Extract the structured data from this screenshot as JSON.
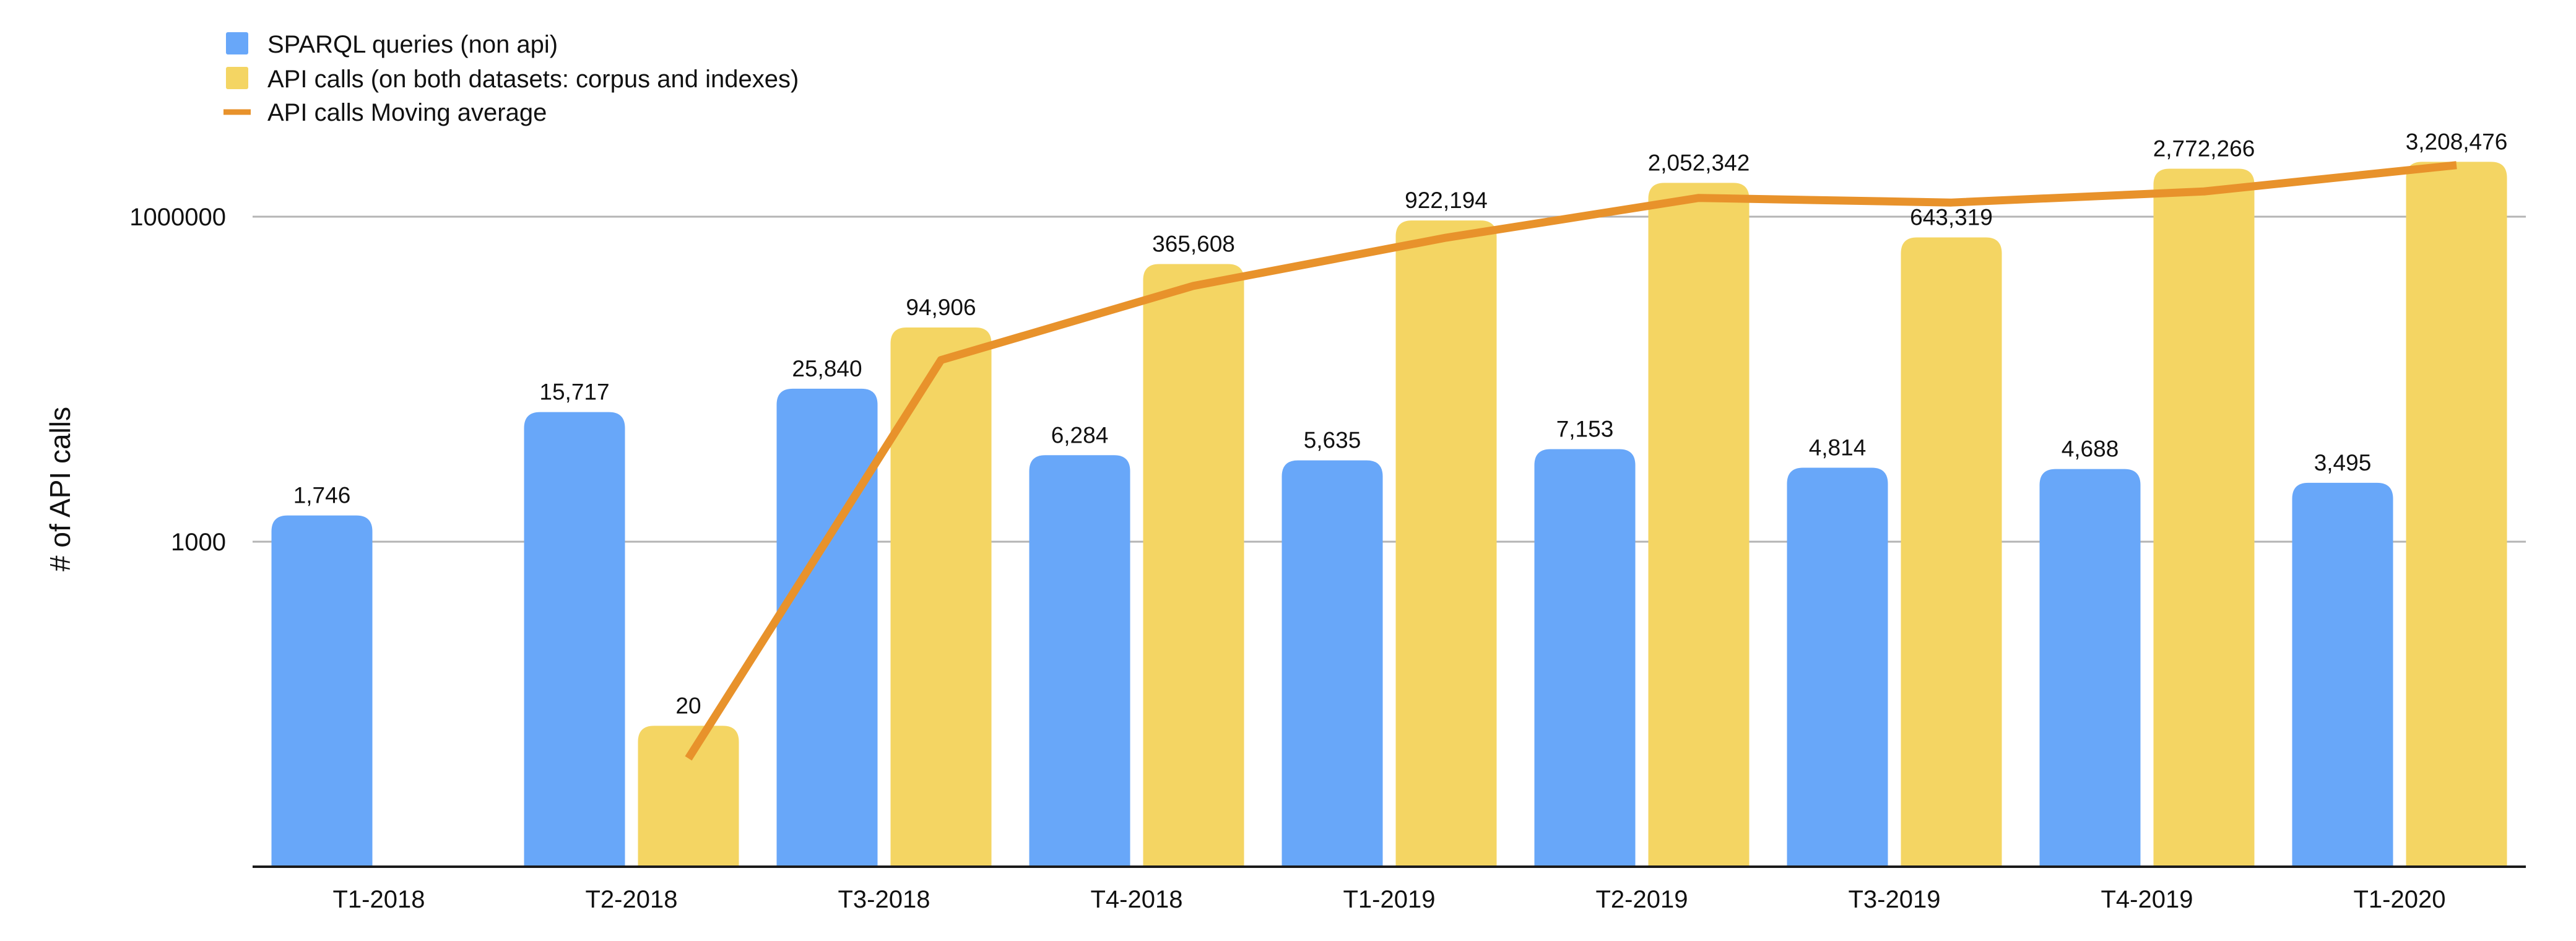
{
  "chart_data": {
    "type": "bar",
    "title": "",
    "xlabel": "",
    "ylabel": "# of API calls",
    "yscale": "log",
    "ylim": [
      1,
      100000000
    ],
    "y_ticks": [
      {
        "value": 1000,
        "label": "1000"
      },
      {
        "value": 1000000,
        "label": "1000000"
      }
    ],
    "grid": true,
    "legend_position": "top-left",
    "categories": [
      "T1-2018",
      "T2-2018",
      "T3-2018",
      "T4-2018",
      "T1-2019",
      "T2-2019",
      "T3-2019",
      "T4-2019",
      "T1-2020"
    ],
    "series": [
      {
        "name": "SPARQL queries (non api)",
        "kind": "bar",
        "color": "#68A7F9",
        "values": [
          1746,
          15717,
          25840,
          6284,
          5635,
          7153,
          4814,
          4688,
          3495
        ],
        "labels": [
          "1,746",
          "15,717",
          "25,840",
          "6,284",
          "5,635",
          "7,153",
          "4,814",
          "4,688",
          "3,495"
        ]
      },
      {
        "name": "API calls (on both datasets: corpus and indexes)",
        "kind": "bar",
        "color": "#F4D563",
        "values": [
          null,
          20,
          94906,
          365608,
          922194,
          2052342,
          643319,
          2772266,
          3208476
        ],
        "labels": [
          "",
          "20",
          "94,906",
          "365,608",
          "922,194",
          "2,052,342",
          "643,319",
          "2,772,266",
          "3,208,476"
        ]
      },
      {
        "name": "API calls Moving average",
        "kind": "line",
        "color": "#E8922B",
        "values": [
          null,
          10,
          47500,
          230000,
          640000,
          1490000,
          1350000,
          1710000,
          2990000
        ]
      }
    ]
  }
}
